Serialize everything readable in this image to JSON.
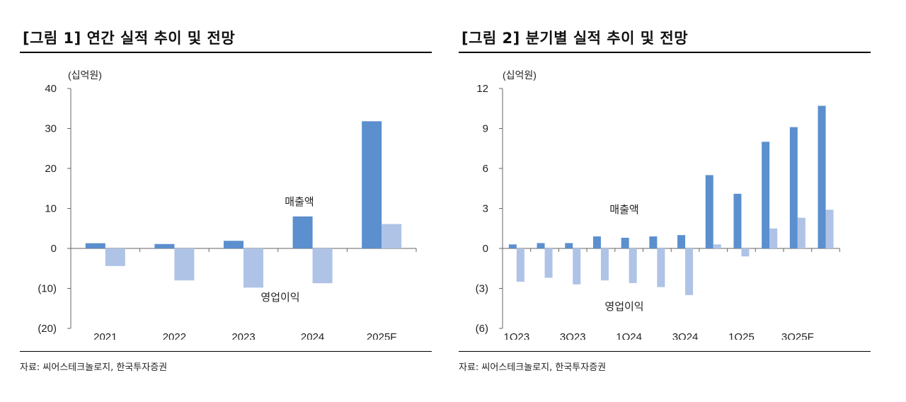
{
  "charts": [
    {
      "title": "[그림 1] 연간 실적 추이 및 전망",
      "source": "자료: 씨어스테크놀로지, 한국투자증권",
      "unit": "(십억원)",
      "annotations": {
        "revenue": "매출액",
        "operating_income": "영업이익"
      },
      "y_ticks": [
        "40",
        "30",
        "20",
        "10",
        "0",
        "(10)",
        "(20)"
      ],
      "x_ticks": [
        "2021",
        "2022",
        "2023",
        "2024",
        "2025F"
      ]
    },
    {
      "title": "[그림 2] 분기별 실적 추이 및 전망",
      "source": "자료: 씨어스테크놀로지, 한국투자증권",
      "unit": "(십억원)",
      "annotations": {
        "revenue": "매출액",
        "operating_income": "영업이익"
      },
      "y_ticks": [
        "12",
        "9",
        "6",
        "3",
        "0",
        "(3)",
        "(6)"
      ],
      "x_ticks": [
        "1Q23",
        "3Q23",
        "1Q24",
        "3Q24",
        "1Q25",
        "3Q25F"
      ]
    }
  ],
  "colors": {
    "revenue": "#5b8fce",
    "operating_income": "#aec3e6"
  },
  "chart_data": [
    {
      "type": "bar",
      "categories": [
        "2021",
        "2022",
        "2023",
        "2024",
        "2025F"
      ],
      "series": [
        {
          "name": "매출액",
          "values": [
            1.3,
            1.1,
            1.9,
            8.0,
            31.8
          ]
        },
        {
          "name": "영업이익",
          "values": [
            -4.4,
            -8.0,
            -9.8,
            -8.7,
            6.1
          ]
        }
      ],
      "ylim": [
        -20,
        40
      ],
      "ylabel": "(십억원)"
    },
    {
      "type": "bar",
      "categories": [
        "1Q23",
        "2Q23",
        "3Q23",
        "4Q23",
        "1Q24",
        "2Q24",
        "3Q24",
        "4Q24",
        "1Q25",
        "2Q25",
        "3Q25F",
        "4Q25F"
      ],
      "series": [
        {
          "name": "매출액",
          "values": [
            0.3,
            0.4,
            0.4,
            0.9,
            0.8,
            0.9,
            1.0,
            5.5,
            4.1,
            8.0,
            9.1,
            10.7
          ]
        },
        {
          "name": "영업이익",
          "values": [
            -2.5,
            -2.2,
            -2.7,
            -2.4,
            -2.6,
            -2.9,
            -3.5,
            0.3,
            -0.6,
            1.5,
            2.3,
            2.9
          ]
        }
      ],
      "ylim": [
        -6,
        12
      ],
      "ylabel": "(십억원)"
    }
  ]
}
